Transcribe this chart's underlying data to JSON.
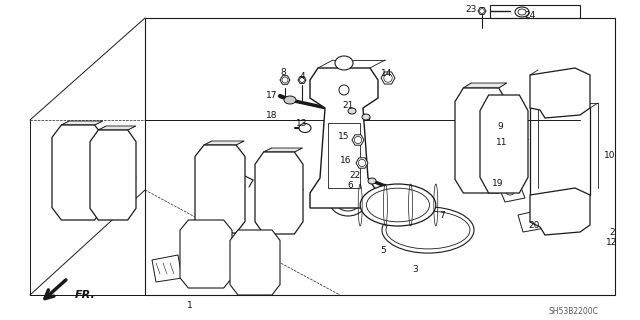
{
  "bg_color": "#ffffff",
  "line_color": "#1a1a1a",
  "part_code": "SH53B2200C",
  "label_color": "#111111",
  "figsize": [
    6.4,
    3.2
  ],
  "dpi": 100
}
